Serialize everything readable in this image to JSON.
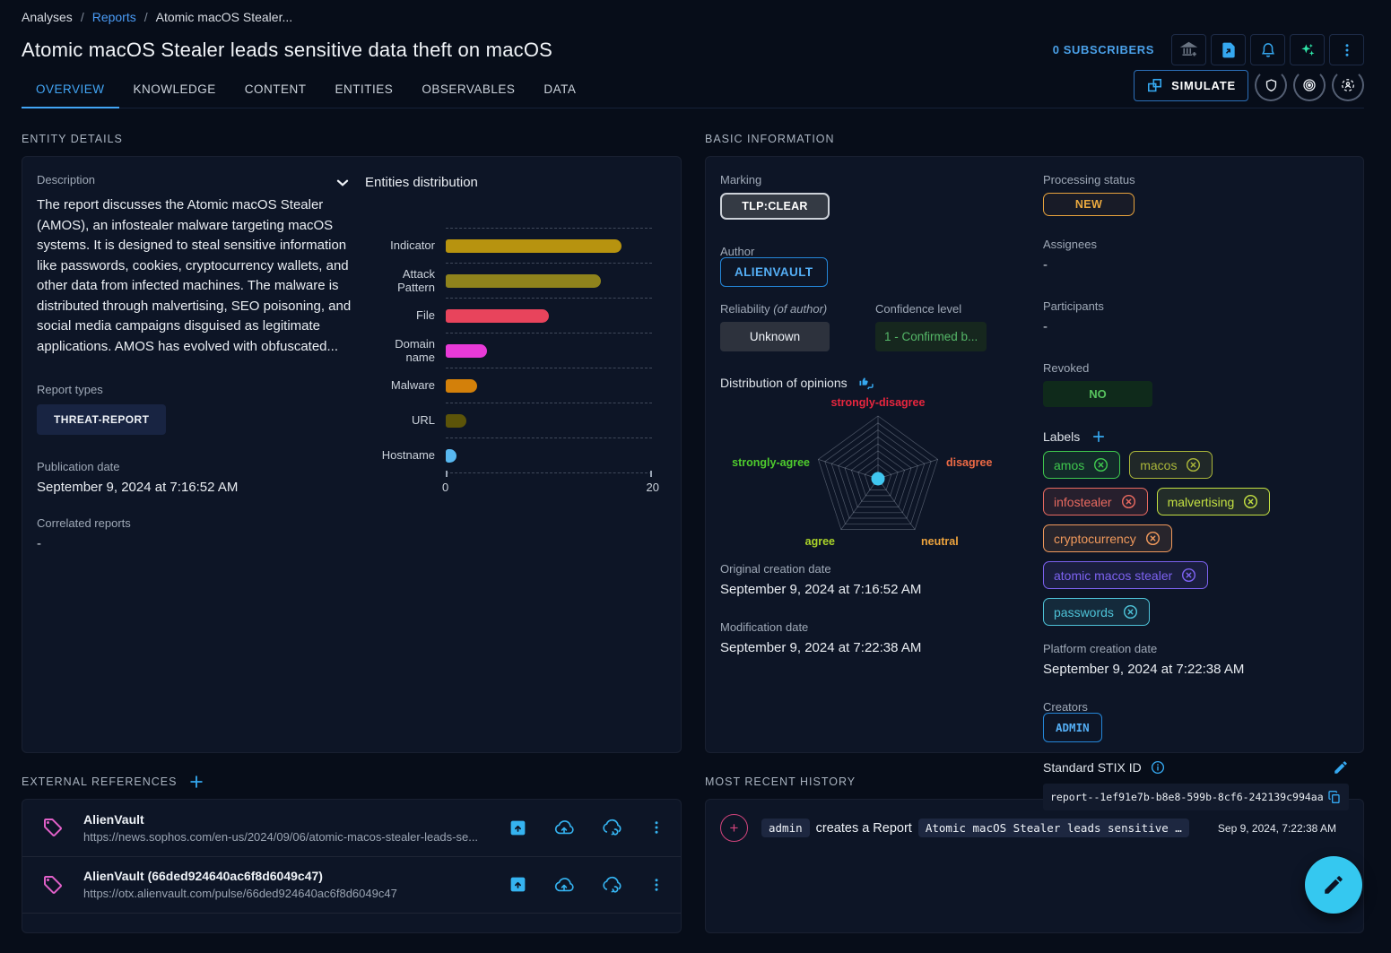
{
  "breadcrumb": {
    "items": [
      "Analyses",
      "Reports",
      "Atomic macOS Stealer..."
    ]
  },
  "header": {
    "title": "Atomic macOS Stealer leads sensitive data theft on macOS",
    "subscribers": "0 SUBSCRIBERS",
    "simulate_label": "SIMULATE"
  },
  "tabs": [
    {
      "label": "OVERVIEW",
      "active": true
    },
    {
      "label": "KNOWLEDGE",
      "active": false
    },
    {
      "label": "CONTENT",
      "active": false
    },
    {
      "label": "ENTITIES",
      "active": false
    },
    {
      "label": "OBSERVABLES",
      "active": false
    },
    {
      "label": "DATA",
      "active": false
    }
  ],
  "icons": {
    "top_actions": [
      "enroll-organization-icon",
      "file-export-icon",
      "notifications-bell-icon",
      "ai-sparkles-icon",
      "kebab-menu-icon"
    ],
    "tab_actions": [
      "shield-icon",
      "target-icon",
      "persona-scan-icon"
    ]
  },
  "entity_details": {
    "section_title": "ENTITY DETAILS",
    "description_label": "Description",
    "description": "The report discusses the Atomic macOS Stealer (AMOS), an infostealer malware targeting macOS systems. It is designed to steal sensitive information like passwords, cookies, cryptocurrency wallets, and other data from infected machines. The malware is distributed through malvertising, SEO poisoning, and social media campaigns disguised as legitimate applications. AMOS has evolved with obfuscated...",
    "report_types_label": "Report types",
    "report_type": "THREAT-REPORT",
    "publication_date_label": "Publication date",
    "publication_date": "September 9, 2024 at 7:16:52 AM",
    "correlated_reports_label": "Correlated reports",
    "correlated_reports": "-"
  },
  "chart_data": [
    {
      "type": "bar",
      "orientation": "horizontal",
      "title": "Entities distribution",
      "categories": [
        "Indicator",
        "Attack Pattern",
        "File",
        "Domain name",
        "Malware",
        "URL",
        "Hostname"
      ],
      "values": [
        17,
        15,
        10,
        4,
        3,
        2,
        1
      ],
      "colors": [
        "#b7930f",
        "#8f831c",
        "#e8445c",
        "#e83ad8",
        "#d3800a",
        "#5c5409",
        "#58b8f0"
      ],
      "xlim": [
        0,
        20
      ],
      "x_tick_labels": [
        "0",
        "20"
      ],
      "grid": "dashed-horizontal",
      "legend": "none"
    },
    {
      "type": "radar",
      "title": "Distribution of opinions",
      "categories": [
        "strongly-disagree",
        "disagree",
        "neutral",
        "agree",
        "strongly-agree"
      ],
      "values": [
        0,
        0,
        0,
        0,
        0
      ],
      "category_colors": [
        "#e8263e",
        "#ed6a45",
        "#eda33d",
        "#aad429",
        "#4ecb2d"
      ],
      "rings": 9,
      "center_dot_color": "#3fc6f0"
    }
  ],
  "basic_information": {
    "section_title": "BASIC INFORMATION",
    "marking_label": "Marking",
    "marking": "TLP:CLEAR",
    "author_label": "Author",
    "author": "ALIENVAULT",
    "reliability_label": "Reliability",
    "reliability_label_suffix": "(of author)",
    "reliability": "Unknown",
    "confidence_label": "Confidence level",
    "confidence": "1 - Confirmed b...",
    "opinions_label": "Distribution of opinions",
    "original_creation_date_label": "Original creation date",
    "original_creation_date": "September 9, 2024 at 7:16:52 AM",
    "modification_date_label": "Modification date",
    "modification_date": "September 9, 2024 at 7:22:38 AM",
    "processing_status_label": "Processing status",
    "processing_status": "NEW",
    "assignees_label": "Assignees",
    "assignees": "-",
    "participants_label": "Participants",
    "participants": "-",
    "revoked_label": "Revoked",
    "revoked": "NO",
    "labels_label": "Labels",
    "labels": [
      {
        "text": "amos",
        "color": "#3fc84e"
      },
      {
        "text": "macos",
        "color": "#aab63a"
      },
      {
        "text": "infostealer",
        "color": "#e86a60"
      },
      {
        "text": "malvertising",
        "color": "#c3e042"
      },
      {
        "text": "cryptocurrency",
        "color": "#f0995c"
      },
      {
        "text": "atomic macos stealer",
        "color": "#7c62f0"
      },
      {
        "text": "passwords",
        "color": "#4ec3d8"
      }
    ],
    "platform_creation_date_label": "Platform creation date",
    "platform_creation_date": "September 9, 2024 at 7:22:38 AM",
    "creators_label": "Creators",
    "creator": "ADMIN",
    "stix_label": "Standard STIX ID",
    "stix_id": "report--1ef91e7b-b8e8-599b-8cf6-242139c994aa"
  },
  "external_references": {
    "section_title": "EXTERNAL REFERENCES",
    "items": [
      {
        "source": "AlienVault",
        "url": "https://news.sophos.com/en-us/2024/09/06/atomic-macos-stealer-leads-se..."
      },
      {
        "source": "AlienVault (66ded924640ac6f8d6049c47)",
        "url": "https://otx.alienvault.com/pulse/66ded924640ac6f8d6049c47"
      }
    ]
  },
  "history": {
    "section_title": "MOST RECENT HISTORY",
    "items": [
      {
        "user": "admin",
        "action": "creates a Report",
        "target": "Atomic macOS Stealer leads sensitive …",
        "date": "Sep 9, 2024, 7:22:38 AM"
      }
    ]
  }
}
